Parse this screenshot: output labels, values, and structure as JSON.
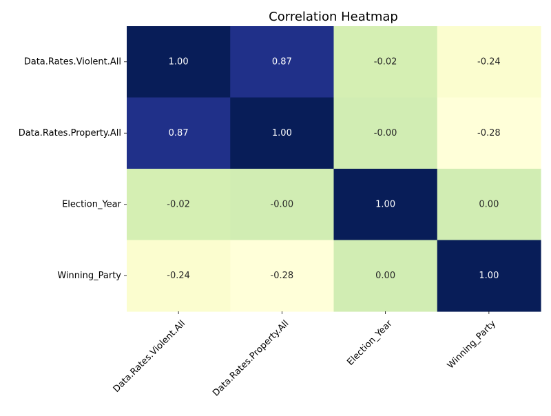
{
  "chart_data": {
    "type": "heatmap",
    "title": "Correlation Heatmap",
    "xlabel": "",
    "ylabel": "",
    "row_labels": [
      "Data.Rates.Violent.All",
      "Data.Rates.Property.All",
      "Election_Year",
      "Winning_Party"
    ],
    "col_labels": [
      "Data.Rates.Violent.All",
      "Data.Rates.Property.All",
      "Election_Year",
      "Winning_Party"
    ],
    "values": [
      [
        1.0,
        0.87,
        -0.02,
        -0.24
      ],
      [
        0.87,
        1.0,
        -0.0,
        -0.28
      ],
      [
        -0.02,
        -0.0,
        1.0,
        0.0
      ],
      [
        -0.24,
        -0.28,
        0.0,
        1.0
      ]
    ],
    "cell_labels": [
      [
        "1.00",
        "0.87",
        "-0.02",
        "-0.24"
      ],
      [
        "0.87",
        "1.00",
        "-0.00",
        "-0.28"
      ],
      [
        "-0.02",
        "-0.00",
        "1.00",
        "0.00"
      ],
      [
        "-0.24",
        "-0.28",
        "0.00",
        "1.00"
      ]
    ],
    "color_range": [
      -0.28,
      1.0
    ],
    "colormap": "YlGnBu",
    "colors": {
      "low": "#ffffd9",
      "high": "#081d58",
      "label_dark": "#262626",
      "label_light": "#ffffff",
      "text": "#000000"
    },
    "colorbar": false,
    "grid": false
  }
}
